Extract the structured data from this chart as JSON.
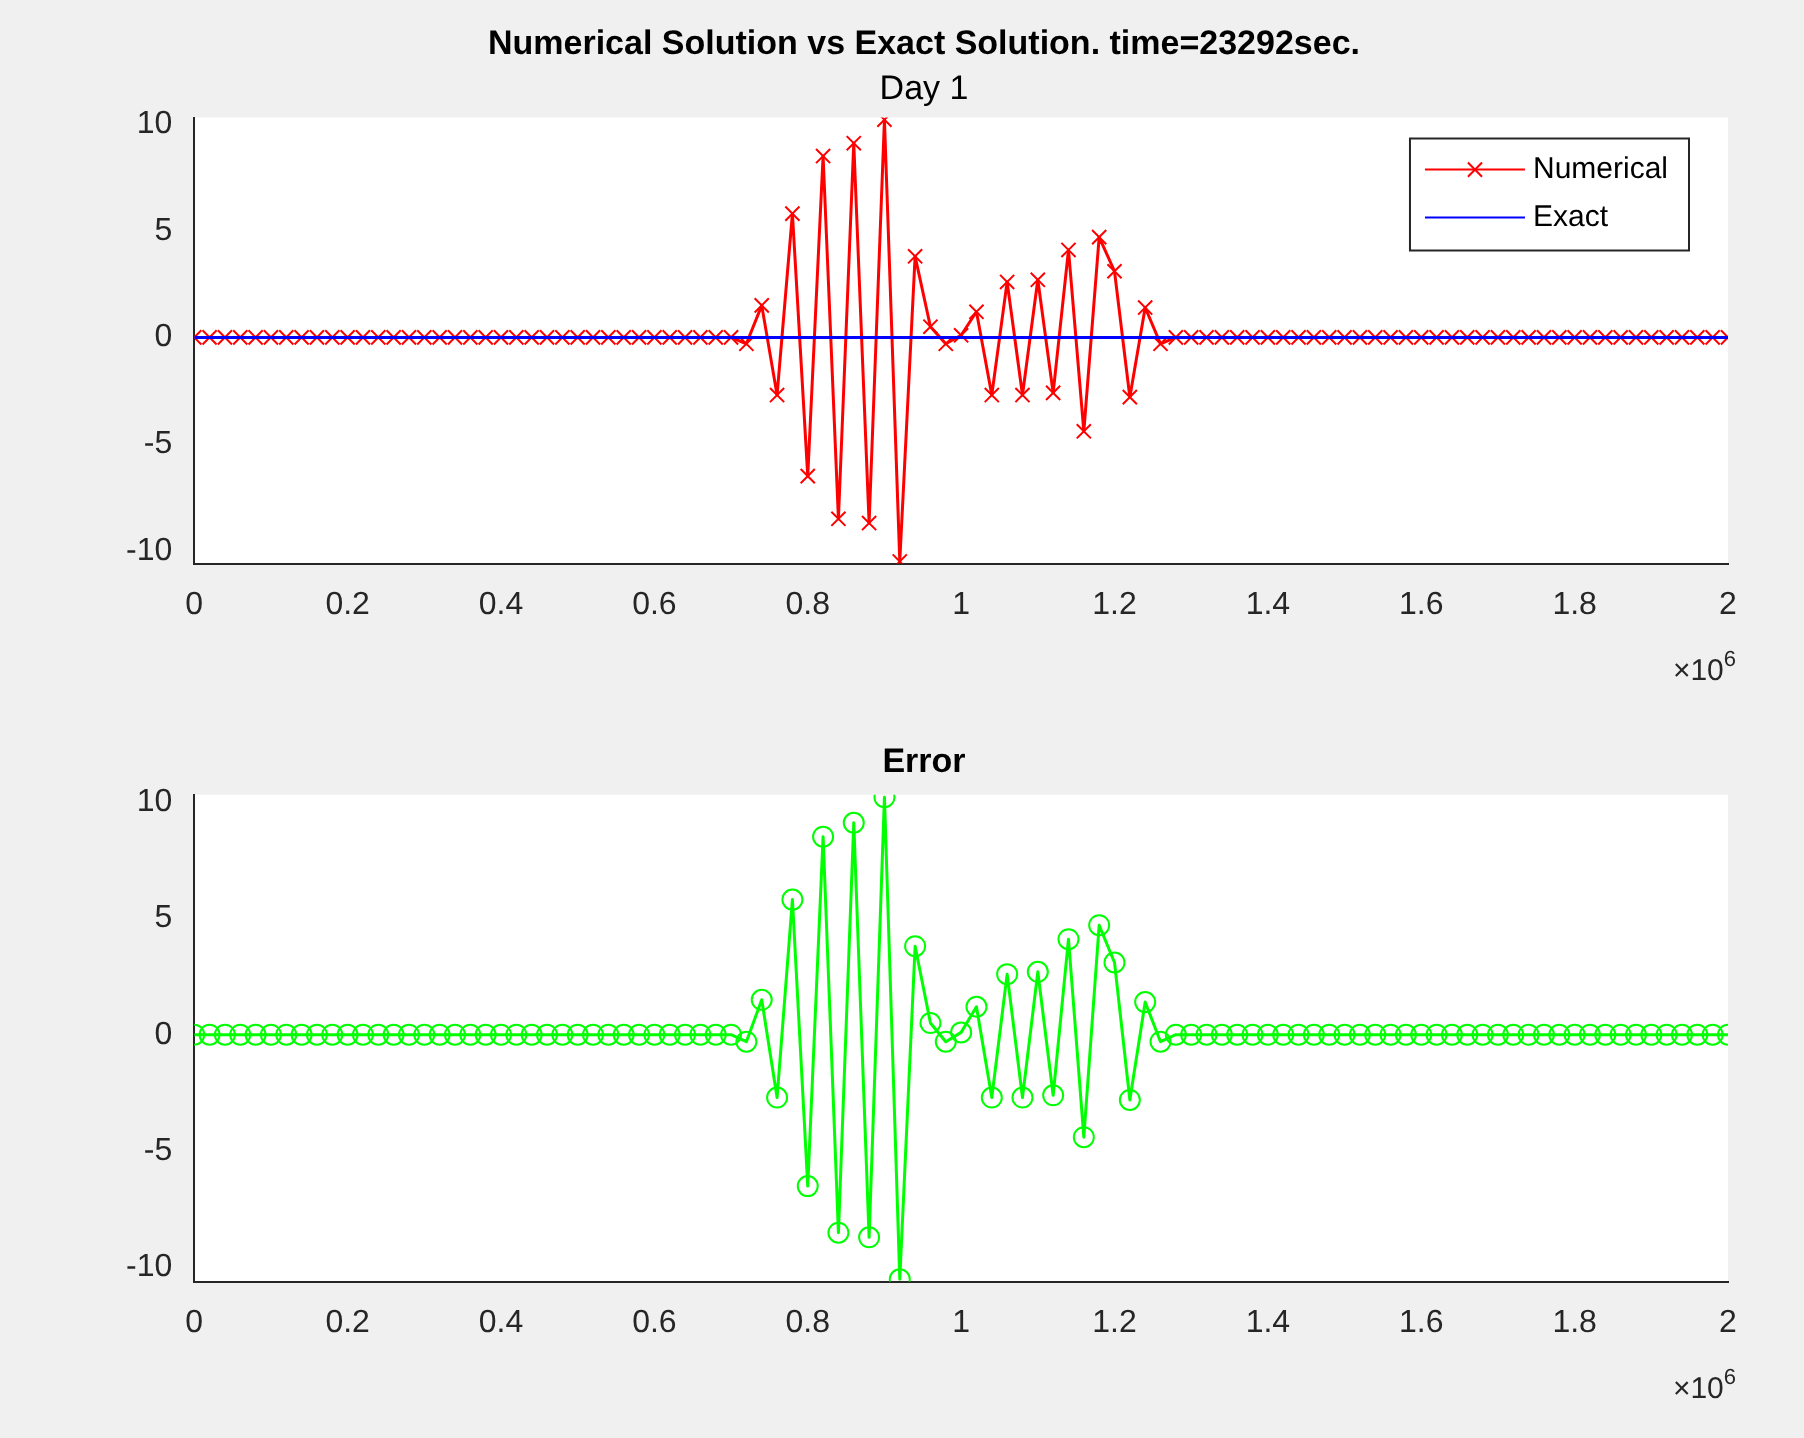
{
  "chart_data": [
    {
      "type": "line",
      "title": "Numerical Solution vs Exact Solution. time=23292sec.",
      "subtitle": "Day 1",
      "annotations": [
        "×10$^{6}$"
      ],
      "x": [
        0,
        0.02,
        0.04,
        0.06,
        0.08,
        0.1,
        0.12,
        0.14,
        0.16,
        0.18,
        0.2,
        0.22,
        0.24,
        0.26,
        0.28,
        0.3,
        0.32,
        0.34,
        0.36,
        0.38,
        0.4,
        0.42,
        0.44,
        0.46,
        0.48,
        0.5,
        0.52,
        0.54,
        0.56,
        0.58,
        0.6,
        0.62,
        0.64,
        0.66,
        0.68,
        0.7,
        0.72,
        0.74,
        0.76,
        0.78,
        0.8,
        0.82,
        0.84,
        0.86,
        0.88,
        0.9,
        0.92,
        0.94,
        0.96,
        0.98,
        1,
        1.02,
        1.04,
        1.06,
        1.08,
        1.1,
        1.12,
        1.14,
        1.16,
        1.18,
        1.2,
        1.22,
        1.24,
        1.26,
        1.28,
        1.3,
        1.32,
        1.34,
        1.36,
        1.38,
        1.4,
        1.42,
        1.44,
        1.46,
        1.48,
        1.5,
        1.52,
        1.54,
        1.56,
        1.58,
        1.6,
        1.62,
        1.64,
        1.66,
        1.68,
        1.7,
        1.72,
        1.74,
        1.76,
        1.78,
        1.8,
        1.82,
        1.84,
        1.86,
        1.88,
        1.9,
        1.92,
        1.94,
        1.96,
        1.98,
        2
      ],
      "series": [
        {
          "name": "Numerical",
          "color": "#ff0000",
          "marker": "cross",
          "values": [
            0,
            0,
            0,
            0,
            0,
            0,
            0,
            0,
            0,
            0,
            0,
            0,
            0,
            0,
            0,
            0,
            0,
            0,
            0,
            0,
            0,
            0,
            0,
            0,
            0,
            0,
            0,
            0,
            0,
            0,
            0,
            0,
            0,
            0,
            0,
            0,
            -0.3,
            1.5,
            -2.7,
            5.8,
            -6.5,
            8.5,
            -8.5,
            9.1,
            -8.7,
            10.2,
            -10.5,
            3.8,
            0.5,
            -0.3,
            0.1,
            1.2,
            -2.7,
            2.6,
            -2.7,
            2.7,
            -2.6,
            4.1,
            -4.4,
            4.7,
            3.1,
            -2.8,
            1.4,
            -0.3,
            0,
            0,
            0,
            0,
            0,
            0,
            0,
            0,
            0,
            0,
            0,
            0,
            0,
            0,
            0,
            0,
            0,
            0,
            0,
            0,
            0,
            0,
            0,
            0,
            0,
            0,
            0,
            0,
            0,
            0,
            0,
            0,
            0,
            0,
            0,
            0,
            0
          ]
        },
        {
          "name": "Exact",
          "color": "#0000ff",
          "marker": "none",
          "x": [
            0,
            2
          ],
          "values": [
            0,
            0
          ]
        }
      ],
      "xlim": [
        0,
        2
      ],
      "xticks": [
        0,
        0.2,
        0.4,
        0.6,
        0.8,
        1,
        1.2,
        1.4,
        1.6,
        1.8,
        2
      ],
      "ylim": [
        -10.6,
        10.3
      ],
      "yticks": [
        -10,
        -5,
        0,
        5,
        10
      ],
      "grid": false,
      "legend": "top right"
    },
    {
      "type": "line",
      "title": "Error",
      "annotations": [
        "×10$^{6}$"
      ],
      "x": [
        0,
        0.02,
        0.04,
        0.06,
        0.08,
        0.1,
        0.12,
        0.14,
        0.16,
        0.18,
        0.2,
        0.22,
        0.24,
        0.26,
        0.28,
        0.3,
        0.32,
        0.34,
        0.36,
        0.38,
        0.4,
        0.42,
        0.44,
        0.46,
        0.48,
        0.5,
        0.52,
        0.54,
        0.56,
        0.58,
        0.6,
        0.62,
        0.64,
        0.66,
        0.68,
        0.7,
        0.72,
        0.74,
        0.76,
        0.78,
        0.8,
        0.82,
        0.84,
        0.86,
        0.88,
        0.9,
        0.92,
        0.94,
        0.96,
        0.98,
        1,
        1.02,
        1.04,
        1.06,
        1.08,
        1.1,
        1.12,
        1.14,
        1.16,
        1.18,
        1.2,
        1.22,
        1.24,
        1.26,
        1.28,
        1.3,
        1.32,
        1.34,
        1.36,
        1.38,
        1.4,
        1.42,
        1.44,
        1.46,
        1.48,
        1.5,
        1.52,
        1.54,
        1.56,
        1.58,
        1.6,
        1.62,
        1.64,
        1.66,
        1.68,
        1.7,
        1.72,
        1.74,
        1.76,
        1.78,
        1.8,
        1.82,
        1.84,
        1.86,
        1.88,
        1.9,
        1.92,
        1.94,
        1.96,
        1.98,
        2
      ],
      "series": [
        {
          "color": "#00ff00",
          "marker": "circle",
          "values": [
            0,
            0,
            0,
            0,
            0,
            0,
            0,
            0,
            0,
            0,
            0,
            0,
            0,
            0,
            0,
            0,
            0,
            0,
            0,
            0,
            0,
            0,
            0,
            0,
            0,
            0,
            0,
            0,
            0,
            0,
            0,
            0,
            0,
            0,
            0,
            0,
            -0.3,
            1.5,
            -2.7,
            5.8,
            -6.5,
            8.5,
            -8.5,
            9.1,
            -8.7,
            10.2,
            -10.5,
            3.8,
            0.5,
            -0.3,
            0.1,
            1.2,
            -2.7,
            2.6,
            -2.7,
            2.7,
            -2.6,
            4.1,
            -4.4,
            4.7,
            3.1,
            -2.8,
            1.4,
            -0.3,
            0,
            0,
            0,
            0,
            0,
            0,
            0,
            0,
            0,
            0,
            0,
            0,
            0,
            0,
            0,
            0,
            0,
            0,
            0,
            0,
            0,
            0,
            0,
            0,
            0,
            0,
            0,
            0,
            0,
            0,
            0,
            0,
            0,
            0,
            0,
            0,
            0
          ]
        }
      ],
      "xlim": [
        0,
        2
      ],
      "xticks": [
        0,
        0.2,
        0.4,
        0.6,
        0.8,
        1,
        1.2,
        1.4,
        1.6,
        1.8,
        2
      ],
      "ylim": [
        -10.6,
        10.3
      ],
      "yticks": [
        -10,
        -5,
        0,
        5,
        10
      ],
      "grid": false
    }
  ]
}
